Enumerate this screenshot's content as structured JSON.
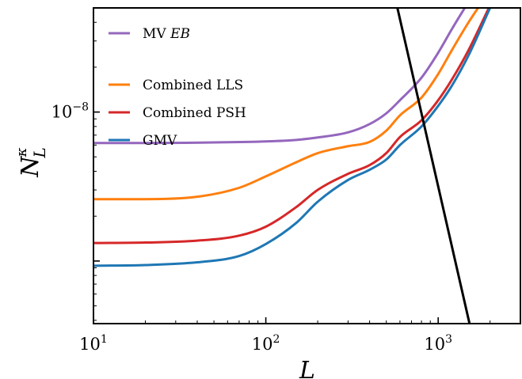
{
  "chart_data": {
    "type": "line",
    "xlabel": "L",
    "ylabel_main": "N",
    "ylabel_super": "κ",
    "ylabel_sub": "L",
    "x_scale": "log",
    "y_scale": "log",
    "xlim": [
      10,
      3000
    ],
    "ylim": [
      3.8e-10,
      5e-08
    ],
    "x_tick_labels": [
      {
        "value": 10,
        "base": "10",
        "exp": "1"
      },
      {
        "value": 100,
        "base": "10",
        "exp": "2"
      },
      {
        "value": 1000,
        "base": "10",
        "exp": "3"
      }
    ],
    "y_tick_labels": [
      {
        "value": 1e-08,
        "base": "10",
        "exp": "−8"
      }
    ],
    "legend_position": "top-left",
    "series": [
      {
        "name": "MV",
        "name_suffix": "EB",
        "color": "#9467bd",
        "x": [
          10,
          20,
          50,
          100,
          150,
          200,
          300,
          400,
          500,
          600,
          800,
          1000,
          1200,
          1500
        ],
        "y": [
          6.2e-09,
          6.2e-09,
          6.25e-09,
          6.35e-09,
          6.5e-09,
          6.75e-09,
          7.3e-09,
          8.3e-09,
          9.8e-09,
          1.2e-08,
          1.7e-08,
          2.5e-08,
          3.6e-08,
          5.5e-08
        ]
      },
      {
        "name": "Combined LLS",
        "color": "#ff7f0e",
        "x": [
          10,
          20,
          40,
          70,
          100,
          150,
          200,
          300,
          400,
          500,
          600,
          800,
          1000,
          1200,
          1500,
          1800
        ],
        "y": [
          2.6e-09,
          2.6e-09,
          2.7e-09,
          3.1e-09,
          3.7e-09,
          4.6e-09,
          5.3e-09,
          5.9e-09,
          6.3e-09,
          7.5e-09,
          9.5e-09,
          1.25e-08,
          1.8e-08,
          2.6e-08,
          4e-08,
          5.5e-08
        ]
      },
      {
        "name": "Combined PSH",
        "color": "#d62728",
        "x": [
          10,
          20,
          40,
          70,
          100,
          150,
          200,
          300,
          400,
          500,
          600,
          800,
          1000,
          1200,
          1500,
          2000
        ],
        "y": [
          1.32e-09,
          1.33e-09,
          1.37e-09,
          1.48e-09,
          1.7e-09,
          2.3e-09,
          3e-09,
          3.85e-09,
          4.4e-09,
          5.3e-09,
          6.8e-09,
          8.8e-09,
          1.2e-08,
          1.65e-08,
          2.6e-08,
          5.2e-08
        ]
      },
      {
        "name": "GMV",
        "color": "#1f77b4",
        "x": [
          10,
          20,
          40,
          70,
          100,
          150,
          200,
          300,
          400,
          500,
          600,
          800,
          1000,
          1200,
          1500,
          2000
        ],
        "y": [
          9.3e-10,
          9.4e-10,
          9.8e-10,
          1.08e-09,
          1.3e-09,
          1.8e-09,
          2.5e-09,
          3.5e-09,
          4.1e-09,
          4.8e-09,
          6e-09,
          8e-09,
          1.1e-08,
          1.5e-08,
          2.4e-08,
          5e-08
        ]
      },
      {
        "color": "#000000",
        "x": [
          580,
          1520
        ],
        "y": [
          5e-08,
          3.8e-10
        ]
      }
    ]
  }
}
